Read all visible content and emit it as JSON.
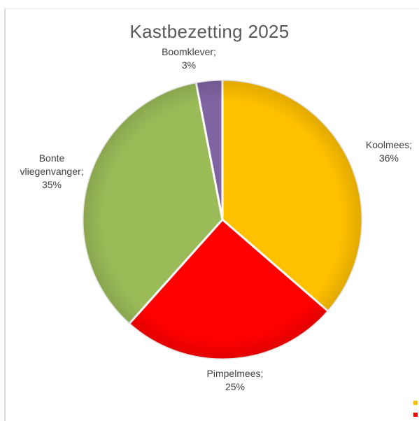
{
  "chart_data": {
    "type": "pie",
    "title": "Kastbezetting 2025",
    "slices": [
      {
        "label": "Koolmees",
        "value": 36,
        "display": "36%",
        "color": "#ffc000",
        "label_lines": [
          "Koolmees;",
          "36%"
        ]
      },
      {
        "label": "Pimpelmees",
        "value": 25,
        "display": "25%",
        "color": "#ff0000",
        "label_lines": [
          "Pimpelmees;",
          "25%"
        ]
      },
      {
        "label": "Bonte vliegenvanger",
        "value": 35,
        "display": "35%",
        "color": "#9bbb59",
        "label_lines": [
          "Bonte",
          "vliegenvanger;",
          "35%"
        ]
      },
      {
        "label": "Boomklever",
        "value": 3,
        "display": "3%",
        "color": "#8064a2",
        "label_lines": [
          "Boomklever;",
          "3%"
        ]
      }
    ],
    "start_angle": "top",
    "direction": "clockwise",
    "legend": "bottom-right (partially visible swatches)"
  }
}
